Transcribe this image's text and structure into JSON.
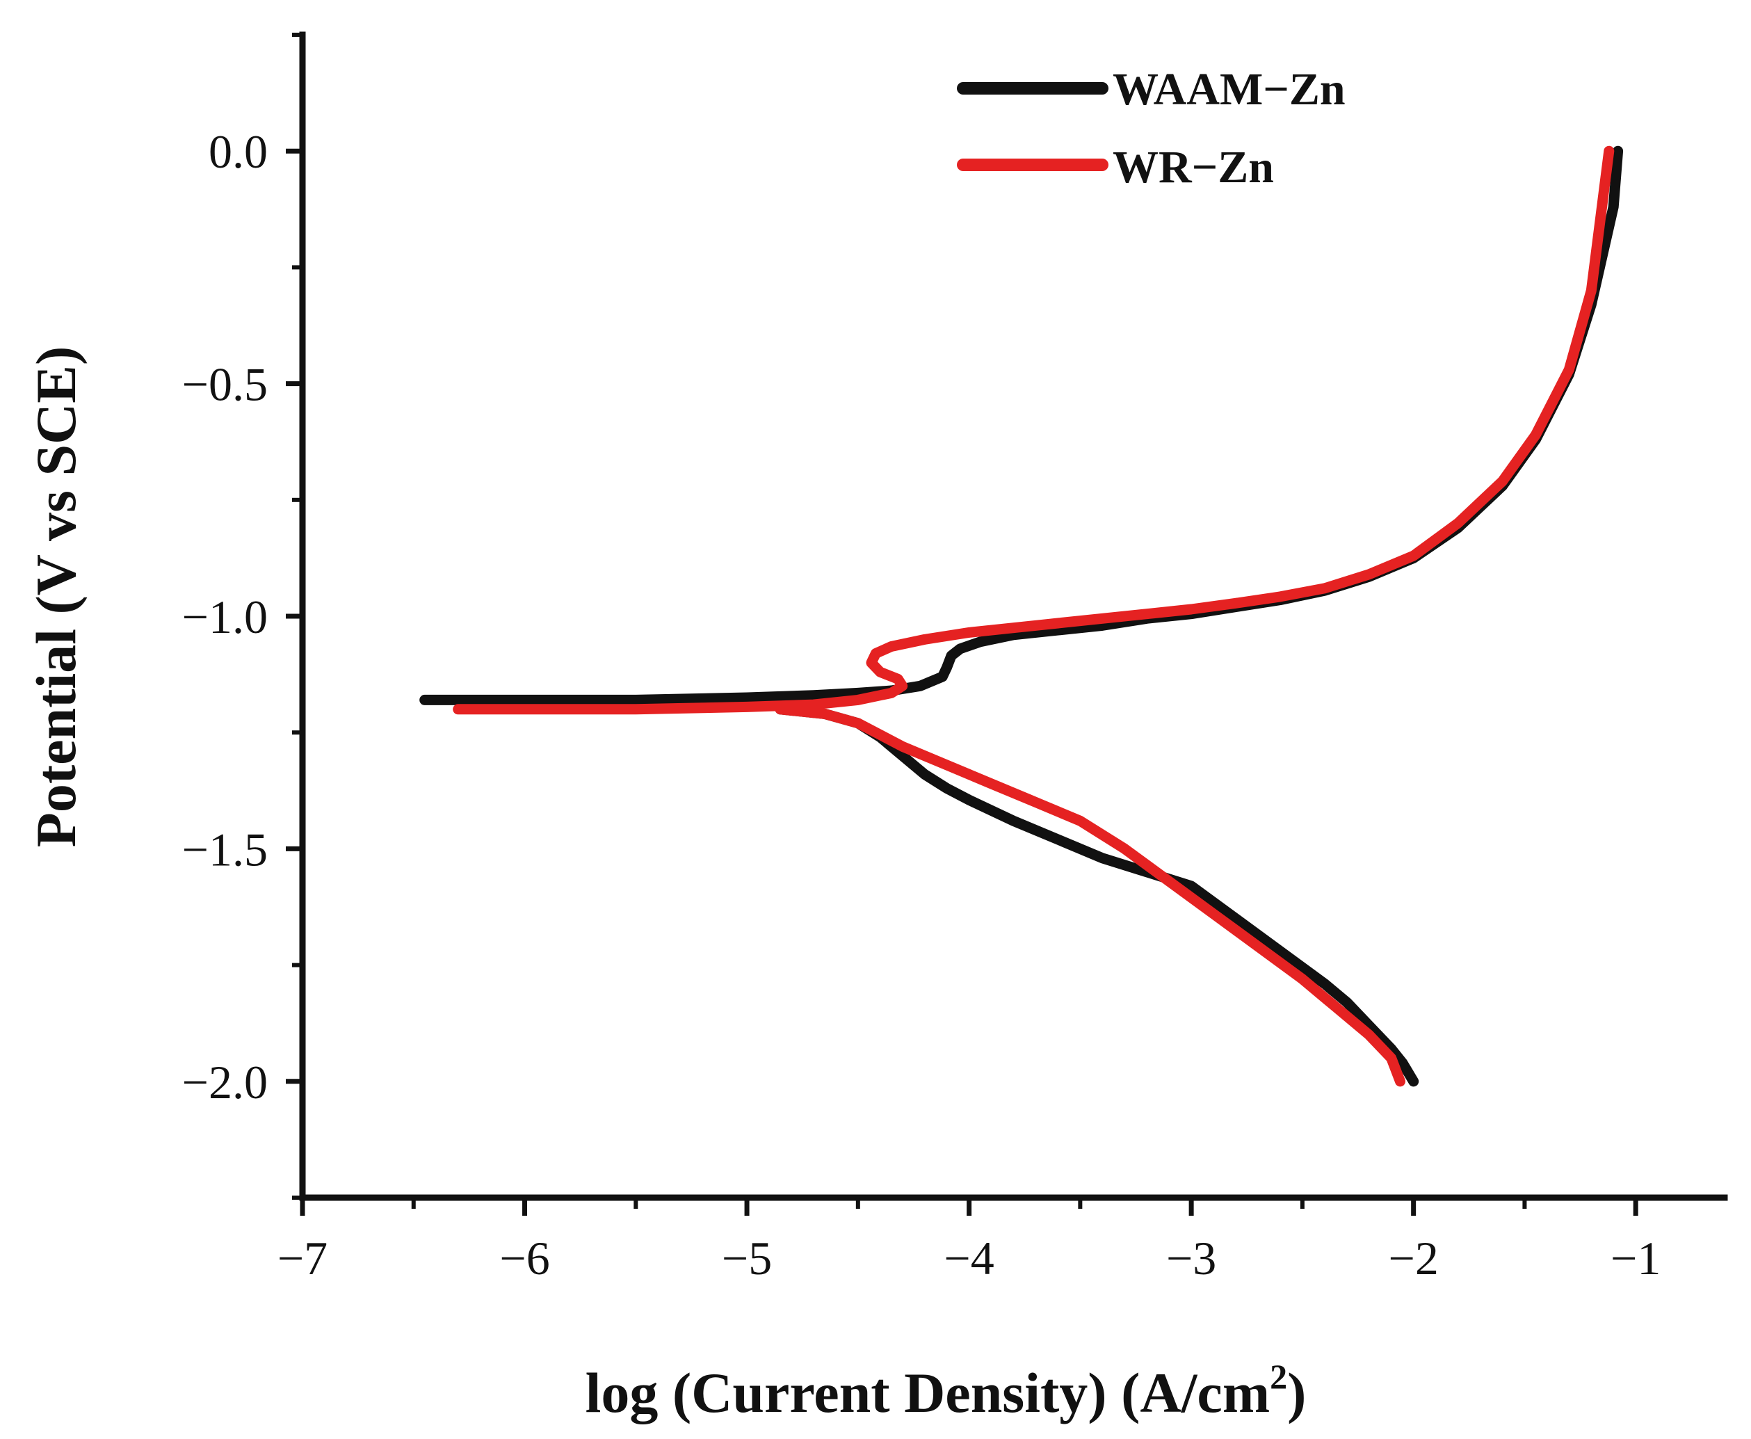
{
  "chart_data": {
    "type": "line",
    "title": "",
    "xlabel": "log (Current Density) (A/cm",
    "xlabel_superscript": "2",
    "xlabel_suffix": ")",
    "ylabel": "Potential (V vs SCE)",
    "xlim": [
      -7,
      -0.6
    ],
    "ylim": [
      -2.25,
      0.25
    ],
    "x_ticks": [
      -7,
      -6,
      -5,
      -4,
      -3,
      -2,
      -1
    ],
    "x_tick_labels": [
      "−7",
      "−6",
      "−5",
      "−4",
      "−3",
      "−2",
      "−1"
    ],
    "y_ticks": [
      0.0,
      -0.5,
      -1.0,
      -1.5,
      -2.0
    ],
    "y_tick_labels": [
      "0.0",
      "−0.5",
      "−1.0",
      "−1.5",
      "−2.0"
    ],
    "grid": false,
    "legend_position": "top-right",
    "series": [
      {
        "name": "WAAM−Zn",
        "color": "#111111",
        "x": [
          -6.45,
          -6.0,
          -5.5,
          -5.0,
          -4.7,
          -4.5,
          -4.35,
          -4.22,
          -4.12,
          -4.1,
          -4.08,
          -4.04,
          -3.95,
          -3.8,
          -3.6,
          -3.4,
          -3.2,
          -3.0,
          -2.8,
          -2.6,
          -2.4,
          -2.2,
          -2.0,
          -1.8,
          -1.6,
          -1.45,
          -1.3,
          -1.2,
          -1.1,
          -1.08,
          null,
          -4.85,
          -4.65,
          -4.5,
          -4.4,
          -4.3,
          -4.2,
          -4.1,
          -4.0,
          -3.8,
          -3.6,
          -3.4,
          -3.2,
          -3.0,
          -2.8,
          -2.6,
          -2.4,
          -2.3,
          -2.2,
          -2.1,
          -2.05,
          -2.0
        ],
        "y": [
          -1.18,
          -1.18,
          -1.18,
          -1.175,
          -1.17,
          -1.165,
          -1.16,
          -1.15,
          -1.13,
          -1.11,
          -1.085,
          -1.07,
          -1.055,
          -1.04,
          -1.03,
          -1.02,
          -1.005,
          -0.995,
          -0.98,
          -0.965,
          -0.945,
          -0.915,
          -0.875,
          -0.81,
          -0.72,
          -0.62,
          -0.48,
          -0.33,
          -0.12,
          0.0,
          null,
          -1.2,
          -1.21,
          -1.23,
          -1.26,
          -1.3,
          -1.34,
          -1.37,
          -1.395,
          -1.44,
          -1.48,
          -1.52,
          -1.55,
          -1.58,
          -1.65,
          -1.72,
          -1.79,
          -1.83,
          -1.88,
          -1.93,
          -1.96,
          -2.0
        ]
      },
      {
        "name": "WR−Zn",
        "color": "#e52222",
        "x": [
          -6.3,
          -6.0,
          -5.5,
          -5.0,
          -4.7,
          -4.5,
          -4.35,
          -4.3,
          -4.32,
          -4.4,
          -4.44,
          -4.42,
          -4.35,
          -4.2,
          -4.0,
          -3.8,
          -3.6,
          -3.4,
          -3.2,
          -3.0,
          -2.8,
          -2.6,
          -2.4,
          -2.2,
          -2.0,
          -1.8,
          -1.6,
          -1.45,
          -1.3,
          -1.2,
          -1.12,
          null,
          -4.85,
          -4.65,
          -4.5,
          -4.4,
          -4.3,
          -4.1,
          -3.9,
          -3.7,
          -3.5,
          -3.3,
          -3.1,
          -2.9,
          -2.7,
          -2.5,
          -2.35,
          -2.2,
          -2.1,
          -2.06
        ],
        "y": [
          -1.2,
          -1.2,
          -1.2,
          -1.195,
          -1.19,
          -1.18,
          -1.165,
          -1.15,
          -1.135,
          -1.12,
          -1.1,
          -1.08,
          -1.065,
          -1.05,
          -1.035,
          -1.025,
          -1.015,
          -1.005,
          -0.995,
          -0.985,
          -0.972,
          -0.958,
          -0.94,
          -0.91,
          -0.87,
          -0.8,
          -0.71,
          -0.61,
          -0.47,
          -0.3,
          0.0,
          null,
          -1.2,
          -1.21,
          -1.23,
          -1.255,
          -1.28,
          -1.32,
          -1.36,
          -1.4,
          -1.44,
          -1.5,
          -1.57,
          -1.64,
          -1.71,
          -1.78,
          -1.84,
          -1.9,
          -1.95,
          -2.0
        ]
      }
    ]
  }
}
